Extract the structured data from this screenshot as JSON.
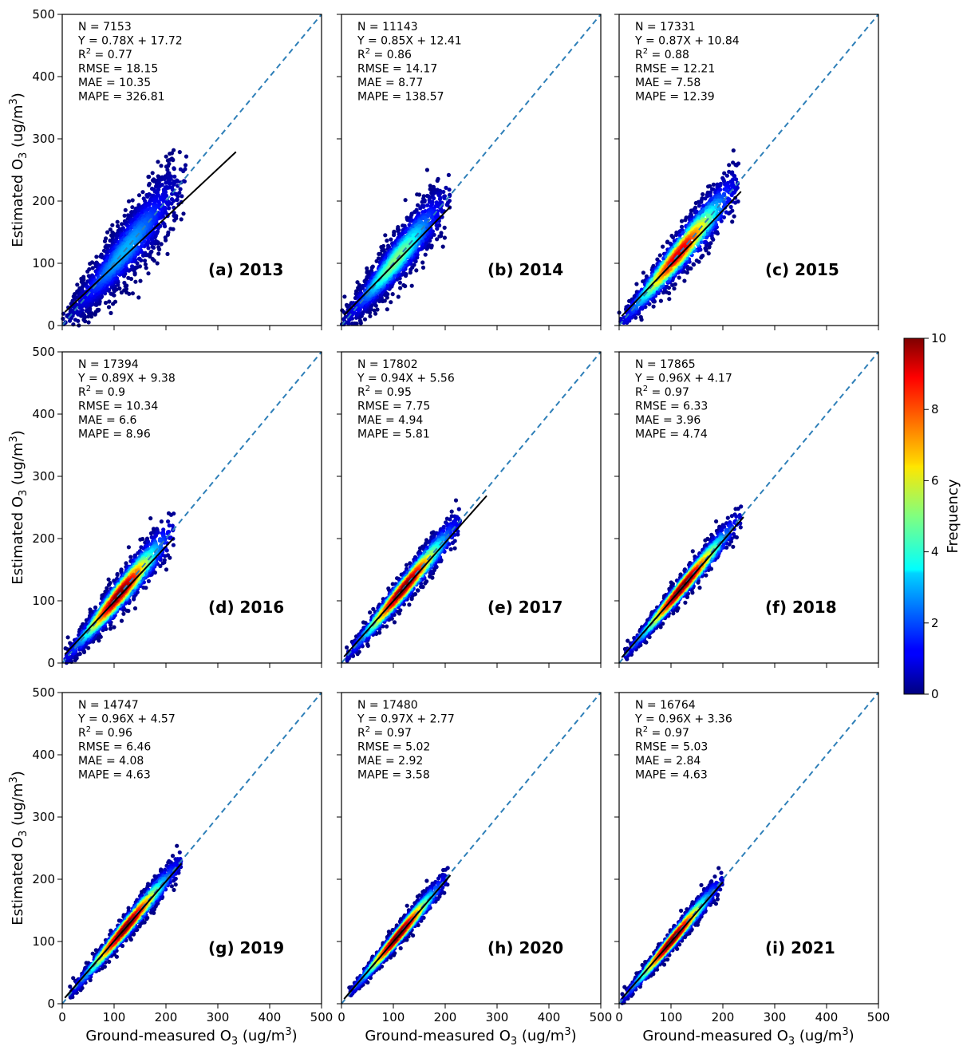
{
  "figure": {
    "ylabel_main": "Estimated O",
    "ylabel_sub": "3",
    "ylabel_unit": " (ug/m",
    "ylabel_unit_sup": "3",
    "ylabel_close": ")",
    "xlabel_main": "Ground-measured O",
    "xlabel_sub": "3",
    "xlabel_unit": " (ug/m",
    "xlabel_unit_sup": "3",
    "xlabel_close": ")"
  },
  "colorbar": {
    "label": "Frequency",
    "range": [
      0,
      10
    ],
    "ticks": [
      "0",
      "2",
      "4",
      "6",
      "8",
      "10"
    ],
    "colormap": "jet"
  },
  "colors": {
    "identity_line": "#2e7fb8",
    "fit_line": "#000000"
  },
  "chart_data": [
    {
      "type": "scatter",
      "label": "(a) 2013",
      "xlim": [
        0,
        500
      ],
      "ylim": [
        0,
        500
      ],
      "xticks": [
        "0",
        "100",
        "200",
        "300",
        "400",
        "500"
      ],
      "yticks": [
        "0",
        "100",
        "200",
        "300",
        "400",
        "500"
      ],
      "stats": {
        "n": "N = 7153",
        "eq": "Y = 0.78X + 17.72",
        "r2_prefix": "R",
        "r2_sup": "2",
        "r2_value": " = 0.77",
        "rmse": "RMSE = 18.15",
        "mae": "MAE = 10.35",
        "mape": "MAPE = 326.81"
      },
      "fit": {
        "slope": 0.78,
        "intercept": 17.72,
        "x_range": [
          5,
          335
        ]
      },
      "cloud": {
        "x_range": [
          0,
          240
        ],
        "spread": 22,
        "density_peak": 3
      }
    },
    {
      "type": "scatter",
      "label": "(b) 2014",
      "xlim": [
        0,
        500
      ],
      "ylim": [
        0,
        500
      ],
      "xticks": [
        "0",
        "100",
        "200",
        "300",
        "400",
        "500"
      ],
      "yticks": [
        "0",
        "100",
        "200",
        "300",
        "400",
        "500"
      ],
      "stats": {
        "n": "N = 11143",
        "eq": "Y = 0.85X + 12.41",
        "r2_prefix": "R",
        "r2_sup": "2",
        "r2_value": " = 0.86",
        "rmse": "RMSE = 14.17",
        "mae": "MAE = 8.77",
        "mape": "MAPE = 138.57"
      },
      "fit": {
        "slope": 0.85,
        "intercept": 12.41,
        "x_range": [
          5,
          210
        ]
      },
      "cloud": {
        "x_range": [
          0,
          210
        ],
        "spread": 18,
        "density_peak": 5
      }
    },
    {
      "type": "scatter",
      "label": "(c) 2015",
      "xlim": [
        0,
        500
      ],
      "ylim": [
        0,
        500
      ],
      "xticks": [
        "0",
        "100",
        "200",
        "300",
        "400",
        "500"
      ],
      "yticks": [
        "0",
        "100",
        "200",
        "300",
        "400",
        "500"
      ],
      "stats": {
        "n": "N = 17331",
        "eq": "Y = 0.87X + 10.84",
        "r2_prefix": "R",
        "r2_sup": "2",
        "r2_value": " = 0.88",
        "rmse": "RMSE = 12.21",
        "mae": "MAE = 7.58",
        "mape": "MAPE = 12.39"
      },
      "fit": {
        "slope": 0.87,
        "intercept": 10.84,
        "x_range": [
          5,
          235
        ]
      },
      "cloud": {
        "x_range": [
          0,
          230
        ],
        "spread": 15,
        "density_peak": 9
      }
    },
    {
      "type": "scatter",
      "label": "(d) 2016",
      "xlim": [
        0,
        500
      ],
      "ylim": [
        0,
        500
      ],
      "xticks": [
        "0",
        "100",
        "200",
        "300",
        "400",
        "500"
      ],
      "yticks": [
        "0",
        "100",
        "200",
        "300",
        "400",
        "500"
      ],
      "stats": {
        "n": "N = 17394",
        "eq": "Y = 0.89X + 9.38",
        "r2_prefix": "R",
        "r2_sup": "2",
        "r2_value": " = 0.9",
        "rmse": "RMSE = 10.34",
        "mae": "MAE = 6.6",
        "mape": "MAPE = 8.96"
      },
      "fit": {
        "slope": 0.89,
        "intercept": 9.38,
        "x_range": [
          5,
          215
        ]
      },
      "cloud": {
        "x_range": [
          5,
          215
        ],
        "spread": 13,
        "density_peak": 10
      }
    },
    {
      "type": "scatter",
      "label": "(e) 2017",
      "xlim": [
        0,
        500
      ],
      "ylim": [
        0,
        500
      ],
      "xticks": [
        "0",
        "100",
        "200",
        "300",
        "400",
        "500"
      ],
      "yticks": [
        "0",
        "100",
        "200",
        "300",
        "400",
        "500"
      ],
      "stats": {
        "n": "N = 17802",
        "eq": "Y = 0.94X + 5.56",
        "r2_prefix": "R",
        "r2_sup": "2",
        "r2_value": " = 0.95",
        "rmse": "RMSE = 7.75",
        "mae": "MAE = 4.94",
        "mape": "MAPE = 5.81"
      },
      "fit": {
        "slope": 0.94,
        "intercept": 5.56,
        "x_range": [
          5,
          280
        ]
      },
      "cloud": {
        "x_range": [
          10,
          230
        ],
        "spread": 10,
        "density_peak": 10
      }
    },
    {
      "type": "scatter",
      "label": "(f) 2018",
      "xlim": [
        0,
        500
      ],
      "ylim": [
        0,
        500
      ],
      "xticks": [
        "0",
        "100",
        "200",
        "300",
        "400",
        "500"
      ],
      "yticks": [
        "0",
        "100",
        "200",
        "300",
        "400",
        "500"
      ],
      "stats": {
        "n": "N = 17865",
        "eq": "Y = 0.96X + 4.17",
        "r2_prefix": "R",
        "r2_sup": "2",
        "r2_value": " = 0.97",
        "rmse": "RMSE = 6.33",
        "mae": "MAE = 3.96",
        "mape": "MAPE = 4.74"
      },
      "fit": {
        "slope": 0.96,
        "intercept": 4.17,
        "x_range": [
          5,
          240
        ]
      },
      "cloud": {
        "x_range": [
          10,
          235
        ],
        "spread": 8,
        "density_peak": 10
      }
    },
    {
      "type": "scatter",
      "label": "(g) 2019",
      "xlim": [
        0,
        500
      ],
      "ylim": [
        0,
        500
      ],
      "xticks": [
        "0",
        "100",
        "200",
        "300",
        "400",
        "500"
      ],
      "yticks": [
        "0",
        "100",
        "200",
        "300",
        "400",
        "500"
      ],
      "stats": {
        "n": "N = 14747",
        "eq": "Y = 0.96X + 4.57",
        "r2_prefix": "R",
        "r2_sup": "2",
        "r2_value": " = 0.96",
        "rmse": "RMSE = 6.46",
        "mae": "MAE = 4.08",
        "mape": "MAPE = 4.63"
      },
      "fit": {
        "slope": 0.96,
        "intercept": 4.57,
        "x_range": [
          5,
          230
        ]
      },
      "cloud": {
        "x_range": [
          15,
          230
        ],
        "spread": 8,
        "density_peak": 10
      }
    },
    {
      "type": "scatter",
      "label": "(h) 2020",
      "xlim": [
        0,
        500
      ],
      "ylim": [
        0,
        500
      ],
      "xticks": [
        "0",
        "100",
        "200",
        "300",
        "400",
        "500"
      ],
      "yticks": [
        "0",
        "100",
        "200",
        "300",
        "400",
        "500"
      ],
      "stats": {
        "n": "N = 17480",
        "eq": "Y = 0.97X + 2.77",
        "r2_prefix": "R",
        "r2_sup": "2",
        "r2_value": " = 0.97",
        "rmse": "RMSE = 5.02",
        "mae": "MAE = 2.92",
        "mape": "MAPE = 3.58"
      },
      "fit": {
        "slope": 0.97,
        "intercept": 2.77,
        "x_range": [
          5,
          210
        ]
      },
      "cloud": {
        "x_range": [
          15,
          205
        ],
        "spread": 7,
        "density_peak": 10
      }
    },
    {
      "type": "scatter",
      "label": "(i) 2021",
      "xlim": [
        0,
        500
      ],
      "ylim": [
        0,
        500
      ],
      "xticks": [
        "0",
        "100",
        "200",
        "300",
        "400",
        "500"
      ],
      "yticks": [
        "0",
        "100",
        "200",
        "300",
        "400",
        "500"
      ],
      "stats": {
        "n": "N = 16764",
        "eq": "Y = 0.96X + 3.36",
        "r2_prefix": "R",
        "r2_sup": "2",
        "r2_value": " = 0.97",
        "rmse": "RMSE = 5.03",
        "mae": "MAE = 2.84",
        "mape": "MAPE = 4.63"
      },
      "fit": {
        "slope": 0.96,
        "intercept": 3.36,
        "x_range": [
          5,
          200
        ]
      },
      "cloud": {
        "x_range": [
          5,
          200
        ],
        "spread": 7,
        "density_peak": 10
      }
    }
  ]
}
